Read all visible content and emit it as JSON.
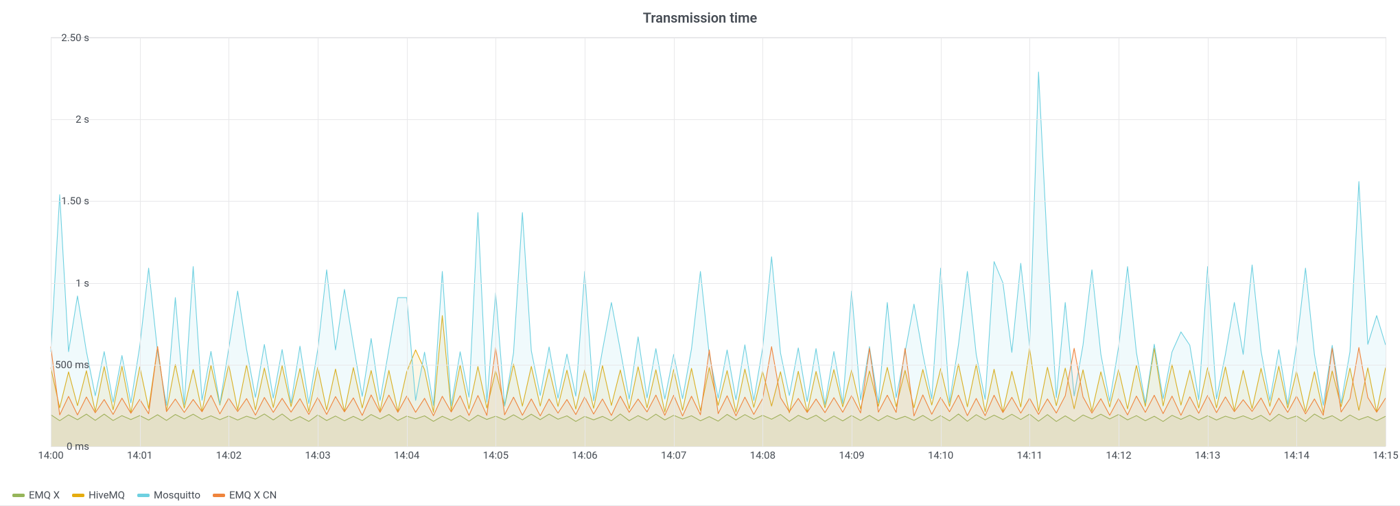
{
  "title": "Transmission time",
  "chart": {
    "type": "line",
    "background_color": "#ffffff",
    "grid_color": "#e8e8ea",
    "text_color": "#464c54",
    "title_fontsize": 20,
    "label_fontsize": 15,
    "line_width": 1.1,
    "fill_opacity": 0.1,
    "x": {
      "min_sec": 0,
      "max_sec": 900,
      "tick_step_sec": 60,
      "tick_labels": [
        "14:00",
        "14:01",
        "14:02",
        "14:03",
        "14:04",
        "14:05",
        "14:06",
        "14:07",
        "14:08",
        "14:09",
        "14:10",
        "14:11",
        "14:12",
        "14:13",
        "14:14",
        "14:15"
      ]
    },
    "y": {
      "min_ms": 0,
      "max_ms": 2500,
      "ticks_ms": [
        0,
        500,
        1000,
        1500,
        2000,
        2500
      ],
      "tick_labels": [
        "0 ms",
        "500 ms",
        "1 s",
        "1.50 s",
        "2 s",
        "2.50 s"
      ]
    },
    "series": [
      {
        "name": "EMQ X",
        "color": "#96b55a",
        "sample_period_sec": 6,
        "base_ms": 160,
        "osc_peak_ms": 190,
        "noise_ms": 8,
        "spikes": []
      },
      {
        "name": "HiveMQ",
        "color": "#e5ac0e",
        "sample_period_sec": 6,
        "base_ms": 230,
        "osc_peak_ms": 480,
        "noise_ms": 25,
        "spikes": [
          {
            "t_sec": 72,
            "ms": 610
          },
          {
            "t_sec": 246,
            "ms": 590
          },
          {
            "t_sec": 264,
            "ms": 800
          },
          {
            "t_sec": 660,
            "ms": 600
          },
          {
            "t_sec": 744,
            "ms": 600
          }
        ]
      },
      {
        "name": "Mosquitto",
        "color": "#6ed0e0",
        "sample_period_sec": 6,
        "base_ms": 280,
        "osc_peak_ms": 590,
        "noise_ms": 35,
        "spikes": [
          {
            "t_sec": 4,
            "ms": 1540
          },
          {
            "t_sec": 18,
            "ms": 920
          },
          {
            "t_sec": 66,
            "ms": 1090
          },
          {
            "t_sec": 84,
            "ms": 910
          },
          {
            "t_sec": 96,
            "ms": 1100
          },
          {
            "t_sec": 126,
            "ms": 950
          },
          {
            "t_sec": 186,
            "ms": 1080
          },
          {
            "t_sec": 198,
            "ms": 960
          },
          {
            "t_sec": 216,
            "ms": 660
          },
          {
            "t_sec": 234,
            "ms": 910
          },
          {
            "t_sec": 240,
            "ms": 910
          },
          {
            "t_sec": 264,
            "ms": 1070
          },
          {
            "t_sec": 288,
            "ms": 1430
          },
          {
            "t_sec": 300,
            "ms": 940
          },
          {
            "t_sec": 318,
            "ms": 1430
          },
          {
            "t_sec": 360,
            "ms": 1070
          },
          {
            "t_sec": 378,
            "ms": 880
          },
          {
            "t_sec": 396,
            "ms": 670
          },
          {
            "t_sec": 438,
            "ms": 1070
          },
          {
            "t_sec": 486,
            "ms": 1160
          },
          {
            "t_sec": 540,
            "ms": 950
          },
          {
            "t_sec": 564,
            "ms": 880
          },
          {
            "t_sec": 582,
            "ms": 870
          },
          {
            "t_sec": 600,
            "ms": 1090
          },
          {
            "t_sec": 618,
            "ms": 1070
          },
          {
            "t_sec": 636,
            "ms": 1130
          },
          {
            "t_sec": 642,
            "ms": 1000
          },
          {
            "t_sec": 654,
            "ms": 1120
          },
          {
            "t_sec": 666,
            "ms": 2290
          },
          {
            "t_sec": 672,
            "ms": 1200
          },
          {
            "t_sec": 684,
            "ms": 880
          },
          {
            "t_sec": 702,
            "ms": 1080
          },
          {
            "t_sec": 726,
            "ms": 1100
          },
          {
            "t_sec": 762,
            "ms": 700
          },
          {
            "t_sec": 780,
            "ms": 1100
          },
          {
            "t_sec": 798,
            "ms": 880
          },
          {
            "t_sec": 810,
            "ms": 1110
          },
          {
            "t_sec": 846,
            "ms": 1090
          },
          {
            "t_sec": 882,
            "ms": 1620
          },
          {
            "t_sec": 894,
            "ms": 800
          }
        ]
      },
      {
        "name": "EMQ X CN",
        "color": "#ef843c",
        "sample_period_sec": 6,
        "base_ms": 200,
        "osc_peak_ms": 300,
        "noise_ms": 15,
        "spikes": [
          {
            "t_sec": 0,
            "ms": 610
          },
          {
            "t_sec": 72,
            "ms": 610
          },
          {
            "t_sec": 300,
            "ms": 605
          },
          {
            "t_sec": 444,
            "ms": 590
          },
          {
            "t_sec": 486,
            "ms": 610
          },
          {
            "t_sec": 552,
            "ms": 600
          },
          {
            "t_sec": 576,
            "ms": 600
          },
          {
            "t_sec": 690,
            "ms": 600
          },
          {
            "t_sec": 864,
            "ms": 600
          },
          {
            "t_sec": 882,
            "ms": 605
          }
        ]
      }
    ],
    "legend_position": "bottom-left"
  }
}
